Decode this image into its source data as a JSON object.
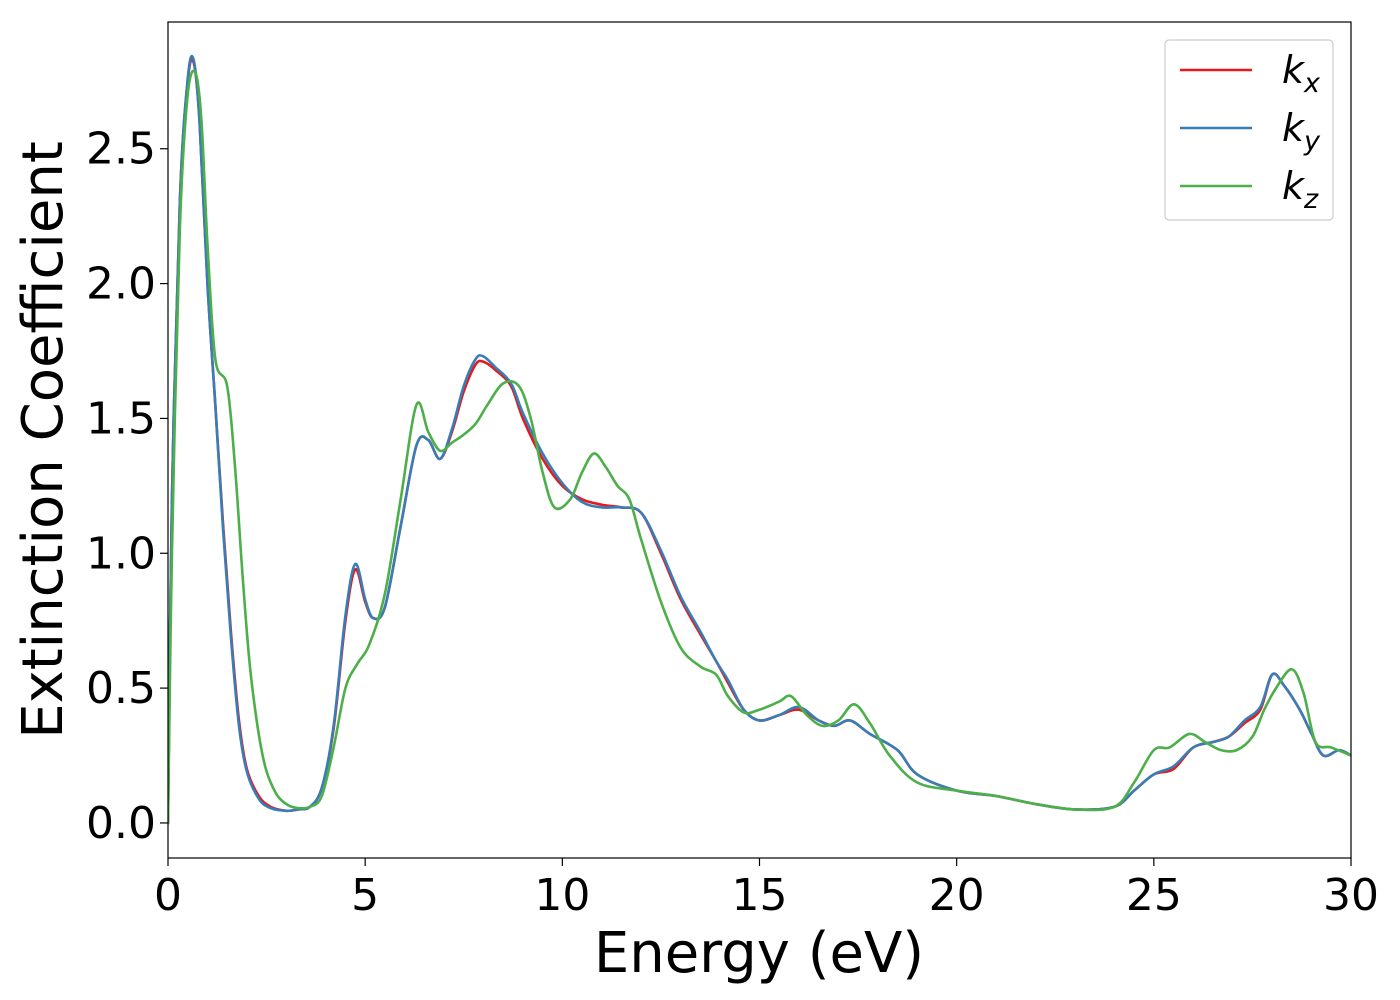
{
  "chart_data": {
    "type": "line",
    "xlabel": "Energy (eV)",
    "ylabel": "Extinction Coefficient",
    "xlim": [
      0,
      30
    ],
    "ylim": [
      -0.13,
      2.97
    ],
    "xticks": [
      "0",
      "5",
      "10",
      "15",
      "20",
      "25",
      "30"
    ],
    "yticks": [
      "0.0",
      "0.5",
      "1.0",
      "1.5",
      "2.0",
      "2.5"
    ],
    "grid": false,
    "legend_position": "top-right",
    "series": [
      {
        "name": "k_x",
        "label_base": "k",
        "label_sub": "x",
        "color": "#e41a1c",
        "x": [
          0,
          0.1,
          0.3,
          0.5,
          0.65,
          0.8,
          1.0,
          1.2,
          1.4,
          1.6,
          1.8,
          2.0,
          2.3,
          2.6,
          3.0,
          3.3,
          3.6,
          3.9,
          4.2,
          4.5,
          4.75,
          5.0,
          5.2,
          5.5,
          5.9,
          6.3,
          6.6,
          6.9,
          7.2,
          7.5,
          7.8,
          8.0,
          8.3,
          8.7,
          9.0,
          9.5,
          10.0,
          10.5,
          11.0,
          11.5,
          12.0,
          12.5,
          13.0,
          13.5,
          13.9,
          14.2,
          14.6,
          15.0,
          15.5,
          16.0,
          16.5,
          16.9,
          17.3,
          17.8,
          18.5,
          19.0,
          20.0,
          21.0,
          22.0,
          23.0,
          24.0,
          24.5,
          25.0,
          25.5,
          26.0,
          26.5,
          26.9,
          27.3,
          27.7,
          28.0,
          28.3,
          28.7,
          29.0,
          29.3,
          29.7,
          30.0
        ],
        "y": [
          0.0,
          1.2,
          2.3,
          2.75,
          2.82,
          2.6,
          2.0,
          1.55,
          1.1,
          0.7,
          0.38,
          0.2,
          0.1,
          0.06,
          0.045,
          0.05,
          0.06,
          0.13,
          0.35,
          0.75,
          0.94,
          0.82,
          0.76,
          0.8,
          1.1,
          1.4,
          1.42,
          1.35,
          1.45,
          1.6,
          1.7,
          1.71,
          1.68,
          1.62,
          1.5,
          1.35,
          1.25,
          1.2,
          1.18,
          1.17,
          1.15,
          1.0,
          0.83,
          0.7,
          0.6,
          0.52,
          0.42,
          0.38,
          0.4,
          0.42,
          0.38,
          0.36,
          0.38,
          0.33,
          0.27,
          0.18,
          0.12,
          0.1,
          0.07,
          0.05,
          0.06,
          0.12,
          0.18,
          0.2,
          0.28,
          0.3,
          0.32,
          0.37,
          0.42,
          0.55,
          0.51,
          0.42,
          0.33,
          0.25,
          0.27,
          0.25
        ]
      },
      {
        "name": "k_y",
        "label_base": "k",
        "label_sub": "y",
        "color": "#377eb8",
        "x": [
          0,
          0.1,
          0.3,
          0.5,
          0.65,
          0.8,
          1.0,
          1.2,
          1.4,
          1.6,
          1.8,
          2.0,
          2.3,
          2.6,
          3.0,
          3.3,
          3.6,
          3.9,
          4.2,
          4.5,
          4.75,
          5.0,
          5.2,
          5.5,
          5.9,
          6.3,
          6.6,
          6.9,
          7.2,
          7.5,
          7.8,
          8.0,
          8.3,
          8.7,
          9.0,
          9.5,
          10.0,
          10.5,
          11.0,
          11.5,
          12.0,
          12.5,
          13.0,
          13.5,
          13.9,
          14.2,
          14.6,
          15.0,
          15.5,
          16.0,
          16.5,
          16.9,
          17.3,
          17.8,
          18.5,
          19.0,
          20.0,
          21.0,
          22.0,
          23.0,
          24.0,
          24.5,
          25.0,
          25.5,
          26.0,
          26.5,
          26.9,
          27.3,
          27.7,
          28.0,
          28.3,
          28.7,
          29.0,
          29.3,
          29.7,
          30.0
        ],
        "y": [
          0.0,
          1.2,
          2.3,
          2.76,
          2.83,
          2.6,
          2.0,
          1.55,
          1.08,
          0.68,
          0.36,
          0.19,
          0.09,
          0.055,
          0.045,
          0.05,
          0.06,
          0.13,
          0.36,
          0.77,
          0.96,
          0.83,
          0.76,
          0.8,
          1.1,
          1.4,
          1.42,
          1.35,
          1.46,
          1.62,
          1.72,
          1.73,
          1.69,
          1.63,
          1.52,
          1.37,
          1.26,
          1.19,
          1.17,
          1.17,
          1.15,
          1.01,
          0.84,
          0.71,
          0.6,
          0.53,
          0.42,
          0.38,
          0.4,
          0.43,
          0.38,
          0.36,
          0.38,
          0.33,
          0.27,
          0.18,
          0.12,
          0.1,
          0.07,
          0.05,
          0.06,
          0.12,
          0.18,
          0.21,
          0.28,
          0.3,
          0.32,
          0.38,
          0.43,
          0.55,
          0.51,
          0.42,
          0.33,
          0.25,
          0.27,
          0.25
        ]
      },
      {
        "name": "k_z",
        "label_base": "k",
        "label_sub": "z",
        "color": "#4daf4a",
        "x": [
          0,
          0.1,
          0.3,
          0.5,
          0.7,
          0.85,
          1.0,
          1.2,
          1.5,
          1.7,
          1.9,
          2.1,
          2.4,
          2.7,
          3.0,
          3.3,
          3.6,
          3.9,
          4.2,
          4.5,
          4.8,
          5.1,
          5.5,
          5.9,
          6.3,
          6.6,
          6.9,
          7.2,
          7.5,
          7.8,
          8.1,
          8.5,
          8.9,
          9.2,
          9.5,
          9.8,
          10.2,
          10.5,
          10.8,
          11.1,
          11.4,
          11.7,
          12.0,
          12.5,
          13.0,
          13.5,
          13.9,
          14.2,
          14.6,
          15.0,
          15.5,
          15.8,
          16.2,
          16.6,
          17.0,
          17.4,
          17.8,
          18.3,
          19.0,
          20.0,
          21.0,
          22.0,
          23.0,
          24.0,
          24.5,
          25.0,
          25.4,
          25.9,
          26.3,
          26.7,
          27.1,
          27.5,
          27.8,
          28.1,
          28.5,
          28.8,
          29.1,
          29.5,
          30.0
        ],
        "y": [
          0.0,
          1.0,
          2.2,
          2.7,
          2.78,
          2.6,
          2.15,
          1.72,
          1.62,
          1.32,
          0.9,
          0.55,
          0.25,
          0.12,
          0.07,
          0.055,
          0.06,
          0.1,
          0.28,
          0.5,
          0.59,
          0.66,
          0.85,
          1.2,
          1.55,
          1.45,
          1.38,
          1.41,
          1.44,
          1.48,
          1.55,
          1.63,
          1.62,
          1.5,
          1.3,
          1.17,
          1.2,
          1.3,
          1.37,
          1.32,
          1.25,
          1.2,
          1.05,
          0.82,
          0.65,
          0.58,
          0.55,
          0.47,
          0.41,
          0.42,
          0.45,
          0.47,
          0.4,
          0.36,
          0.38,
          0.44,
          0.37,
          0.25,
          0.15,
          0.12,
          0.1,
          0.07,
          0.05,
          0.06,
          0.15,
          0.27,
          0.28,
          0.33,
          0.3,
          0.27,
          0.27,
          0.32,
          0.42,
          0.5,
          0.57,
          0.48,
          0.3,
          0.28,
          0.25
        ]
      }
    ]
  }
}
